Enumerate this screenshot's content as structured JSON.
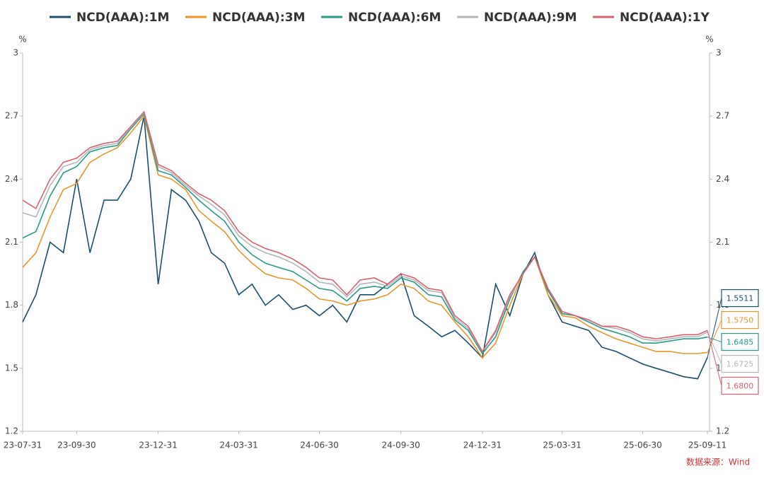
{
  "chart_data": {
    "type": "line",
    "x": [
      "23-07-31",
      "23-08-15",
      "23-08-31",
      "23-09-15",
      "23-09-30",
      "23-10-15",
      "23-10-31",
      "23-11-15",
      "23-11-30",
      "23-12-15",
      "23-12-31",
      "24-01-15",
      "24-01-31",
      "24-02-15",
      "24-02-29",
      "24-03-15",
      "24-03-31",
      "24-04-15",
      "24-04-30",
      "24-05-15",
      "24-05-31",
      "24-06-15",
      "24-06-30",
      "24-07-15",
      "24-07-31",
      "24-08-15",
      "24-08-31",
      "24-09-15",
      "24-09-30",
      "24-10-15",
      "24-10-31",
      "24-11-15",
      "24-11-30",
      "24-12-15",
      "24-12-31",
      "25-01-15",
      "25-01-31",
      "25-02-15",
      "25-02-28",
      "25-03-15",
      "25-03-31",
      "25-04-15",
      "25-04-30",
      "25-05-15",
      "25-05-31",
      "25-06-15",
      "25-06-30",
      "25-07-15",
      "25-07-31",
      "25-08-15",
      "25-08-31",
      "25-09-11"
    ],
    "series": [
      {
        "name": "NCD(AAA):1M",
        "color": "#1b4f6e",
        "values": [
          1.72,
          1.85,
          2.1,
          2.05,
          2.4,
          2.05,
          2.3,
          2.3,
          2.4,
          2.7,
          1.9,
          2.35,
          2.3,
          2.2,
          2.05,
          2.0,
          1.85,
          1.9,
          1.8,
          1.85,
          1.78,
          1.8,
          1.75,
          1.8,
          1.72,
          1.85,
          1.85,
          1.9,
          1.95,
          1.75,
          1.7,
          1.65,
          1.68,
          1.62,
          1.55,
          1.9,
          1.75,
          1.95,
          2.05,
          1.85,
          1.72,
          1.7,
          1.68,
          1.6,
          1.58,
          1.55,
          1.52,
          1.5,
          1.48,
          1.46,
          1.45,
          1.5511
        ],
        "value_labels": [
          null,
          null,
          null,
          null,
          null,
          null,
          null,
          null,
          null,
          null,
          null,
          null,
          null,
          null,
          null,
          null,
          null,
          null,
          null,
          null,
          null,
          null,
          null,
          null,
          null,
          null,
          null,
          null,
          null,
          null,
          null,
          null,
          null,
          null,
          null,
          null,
          null,
          null,
          null,
          null,
          null,
          null,
          null,
          null,
          null,
          null,
          null,
          null,
          null,
          null,
          null,
          "1.5511"
        ]
      },
      {
        "name": "NCD(AAA):3M",
        "color": "#e8962e",
        "values": [
          1.98,
          2.05,
          2.22,
          2.35,
          2.38,
          2.48,
          2.52,
          2.55,
          2.62,
          2.7,
          2.42,
          2.4,
          2.35,
          2.25,
          2.2,
          2.15,
          2.06,
          2.0,
          1.95,
          1.93,
          1.92,
          1.88,
          1.83,
          1.82,
          1.8,
          1.82,
          1.83,
          1.85,
          1.9,
          1.88,
          1.82,
          1.8,
          1.72,
          1.65,
          1.55,
          1.62,
          1.8,
          1.95,
          2.03,
          1.85,
          1.75,
          1.74,
          1.7,
          1.67,
          1.64,
          1.62,
          1.6,
          1.58,
          1.58,
          1.57,
          1.57,
          1.575
        ],
        "value_labels": [
          null,
          null,
          null,
          null,
          null,
          null,
          null,
          null,
          null,
          null,
          null,
          null,
          null,
          null,
          null,
          null,
          null,
          null,
          null,
          null,
          null,
          null,
          null,
          null,
          null,
          null,
          null,
          null,
          null,
          null,
          null,
          null,
          null,
          null,
          null,
          null,
          null,
          null,
          null,
          null,
          null,
          null,
          null,
          null,
          null,
          null,
          null,
          null,
          null,
          null,
          null,
          "1.5750"
        ]
      },
      {
        "name": "NCD(AAA):6M",
        "color": "#2a9a8a",
        "values": [
          2.12,
          2.15,
          2.32,
          2.43,
          2.46,
          2.53,
          2.55,
          2.56,
          2.64,
          2.71,
          2.44,
          2.42,
          2.36,
          2.3,
          2.25,
          2.2,
          2.1,
          2.04,
          2.0,
          1.98,
          1.96,
          1.92,
          1.88,
          1.87,
          1.82,
          1.88,
          1.89,
          1.88,
          1.93,
          1.91,
          1.85,
          1.84,
          1.73,
          1.68,
          1.57,
          1.65,
          1.83,
          1.96,
          2.03,
          1.87,
          1.76,
          1.75,
          1.72,
          1.69,
          1.67,
          1.65,
          1.62,
          1.62,
          1.63,
          1.64,
          1.64,
          1.6485
        ],
        "value_labels": [
          null,
          null,
          null,
          null,
          null,
          null,
          null,
          null,
          null,
          null,
          null,
          null,
          null,
          null,
          null,
          null,
          null,
          null,
          null,
          null,
          null,
          null,
          null,
          null,
          null,
          null,
          null,
          null,
          null,
          null,
          null,
          null,
          null,
          null,
          null,
          null,
          null,
          null,
          null,
          null,
          null,
          null,
          null,
          null,
          null,
          null,
          null,
          null,
          null,
          null,
          null,
          "1.6485"
        ]
      },
      {
        "name": "NCD(AAA):9M",
        "color": "#b3b6bb",
        "values": [
          2.24,
          2.22,
          2.37,
          2.46,
          2.48,
          2.54,
          2.56,
          2.57,
          2.65,
          2.72,
          2.46,
          2.43,
          2.37,
          2.32,
          2.28,
          2.23,
          2.13,
          2.08,
          2.05,
          2.03,
          2.0,
          1.96,
          1.91,
          1.9,
          1.84,
          1.9,
          1.91,
          1.89,
          1.94,
          1.92,
          1.87,
          1.86,
          1.74,
          1.69,
          1.58,
          1.67,
          1.84,
          1.95,
          2.03,
          1.88,
          1.77,
          1.75,
          1.73,
          1.7,
          1.69,
          1.67,
          1.64,
          1.63,
          1.64,
          1.65,
          1.65,
          1.6725
        ],
        "value_labels": [
          null,
          null,
          null,
          null,
          null,
          null,
          null,
          null,
          null,
          null,
          null,
          null,
          null,
          null,
          null,
          null,
          null,
          null,
          null,
          null,
          null,
          null,
          null,
          null,
          null,
          null,
          null,
          null,
          null,
          null,
          null,
          null,
          null,
          null,
          null,
          null,
          null,
          null,
          null,
          null,
          null,
          null,
          null,
          null,
          null,
          null,
          null,
          null,
          null,
          null,
          null,
          "1.6725"
        ]
      },
      {
        "name": "NCD(AAA):1Y",
        "color": "#d9626e",
        "values": [
          2.3,
          2.26,
          2.4,
          2.48,
          2.5,
          2.55,
          2.57,
          2.58,
          2.65,
          2.72,
          2.47,
          2.44,
          2.38,
          2.33,
          2.3,
          2.25,
          2.15,
          2.1,
          2.07,
          2.05,
          2.02,
          1.98,
          1.93,
          1.92,
          1.85,
          1.92,
          1.93,
          1.9,
          1.95,
          1.93,
          1.88,
          1.87,
          1.75,
          1.7,
          1.58,
          1.68,
          1.85,
          1.95,
          2.03,
          1.88,
          1.77,
          1.75,
          1.73,
          1.7,
          1.7,
          1.68,
          1.65,
          1.64,
          1.65,
          1.66,
          1.66,
          1.68
        ],
        "value_labels": [
          null,
          null,
          null,
          null,
          null,
          null,
          null,
          null,
          null,
          null,
          null,
          null,
          null,
          null,
          null,
          null,
          null,
          null,
          null,
          null,
          null,
          null,
          null,
          null,
          null,
          null,
          null,
          null,
          null,
          null,
          null,
          null,
          null,
          null,
          null,
          null,
          null,
          null,
          null,
          null,
          null,
          null,
          null,
          null,
          null,
          null,
          null,
          null,
          null,
          null,
          null,
          "1.6800"
        ]
      }
    ],
    "xlim": [
      "23-07-31",
      "25-09-11"
    ],
    "xticks": [
      "23-07-31",
      "23-09-30",
      "23-12-31",
      "24-03-31",
      "24-06-30",
      "24-09-30",
      "24-12-31",
      "25-03-31",
      "25-06-30",
      "25-09-11"
    ],
    "ylim": [
      1.2,
      3
    ],
    "yticks": [
      3,
      2.7,
      2.4,
      2.1,
      1.8,
      1.5,
      1.2
    ],
    "y2lim": [
      1.2,
      3
    ],
    "y2ticks": [
      3,
      2.7,
      2.4,
      2.1,
      1.8,
      1.5,
      1.2
    ],
    "y_unit": "%",
    "y2_unit": "%",
    "source": "数据来源：Wind",
    "legend": "top",
    "grid": false
  }
}
